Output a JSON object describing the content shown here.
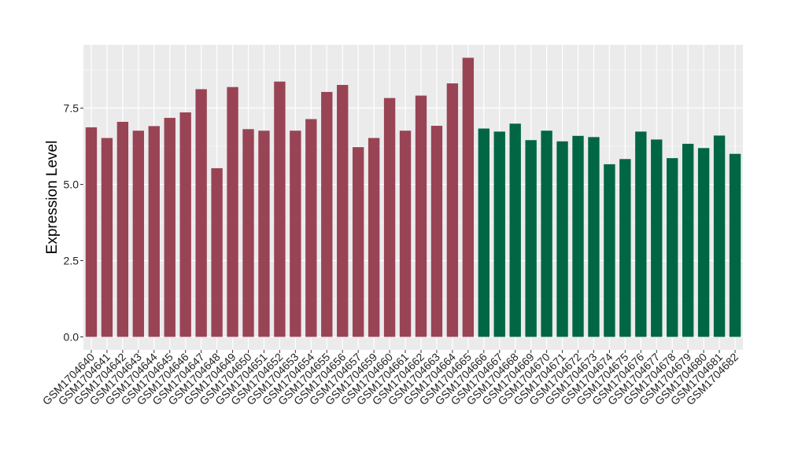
{
  "chart_data": {
    "type": "bar",
    "ylabel": "Expression Level",
    "xlabel": "",
    "ylim": [
      0,
      9.5
    ],
    "yticks": [
      {
        "value": 0,
        "label": "0.0"
      },
      {
        "value": 2.5,
        "label": "2.5"
      },
      {
        "value": 5,
        "label": "5.0"
      },
      {
        "value": 7.5,
        "label": "7.5"
      }
    ],
    "grid": true,
    "colors": {
      "group1": "#994455",
      "group2": "#006644",
      "panel": "#ebebeb",
      "grid": "#ffffff"
    },
    "categories": [
      "GSM1704640",
      "GSM1704641",
      "GSM1704642",
      "GSM1704643",
      "GSM1704644",
      "GSM1704645",
      "GSM1704646",
      "GSM1704647",
      "GSM1704648",
      "GSM1704649",
      "GSM1704650",
      "GSM1704651",
      "GSM1704652",
      "GSM1704653",
      "GSM1704654",
      "GSM1704655",
      "GSM1704656",
      "GSM1704657",
      "GSM1704659",
      "GSM1704660",
      "GSM1704661",
      "GSM1704662",
      "GSM1704663",
      "GSM1704664",
      "GSM1704665",
      "GSM1704666",
      "GSM1704667",
      "GSM1704668",
      "GSM1704669",
      "GSM1704670",
      "GSM1704671",
      "GSM1704672",
      "GSM1704673",
      "GSM1704674",
      "GSM1704675",
      "GSM1704676",
      "GSM1704677",
      "GSM1704678",
      "GSM1704679",
      "GSM1704680",
      "GSM1704681",
      "GSM1704682"
    ],
    "values": [
      6.87,
      6.52,
      7.05,
      6.76,
      6.91,
      7.18,
      7.36,
      8.12,
      5.53,
      8.19,
      6.81,
      6.76,
      8.37,
      6.76,
      7.14,
      8.03,
      8.26,
      6.22,
      6.52,
      7.83,
      6.76,
      7.91,
      6.92,
      8.31,
      9.15,
      6.83,
      6.73,
      6.99,
      6.45,
      6.76,
      6.41,
      6.59,
      6.55,
      5.66,
      5.83,
      6.73,
      6.47,
      5.86,
      6.33,
      6.19,
      6.6,
      6.0
    ],
    "groups": [
      1,
      1,
      1,
      1,
      1,
      1,
      1,
      1,
      1,
      1,
      1,
      1,
      1,
      1,
      1,
      1,
      1,
      1,
      1,
      1,
      1,
      1,
      1,
      1,
      1,
      2,
      2,
      2,
      2,
      2,
      2,
      2,
      2,
      2,
      2,
      2,
      2,
      2,
      2,
      2,
      2,
      2
    ]
  }
}
